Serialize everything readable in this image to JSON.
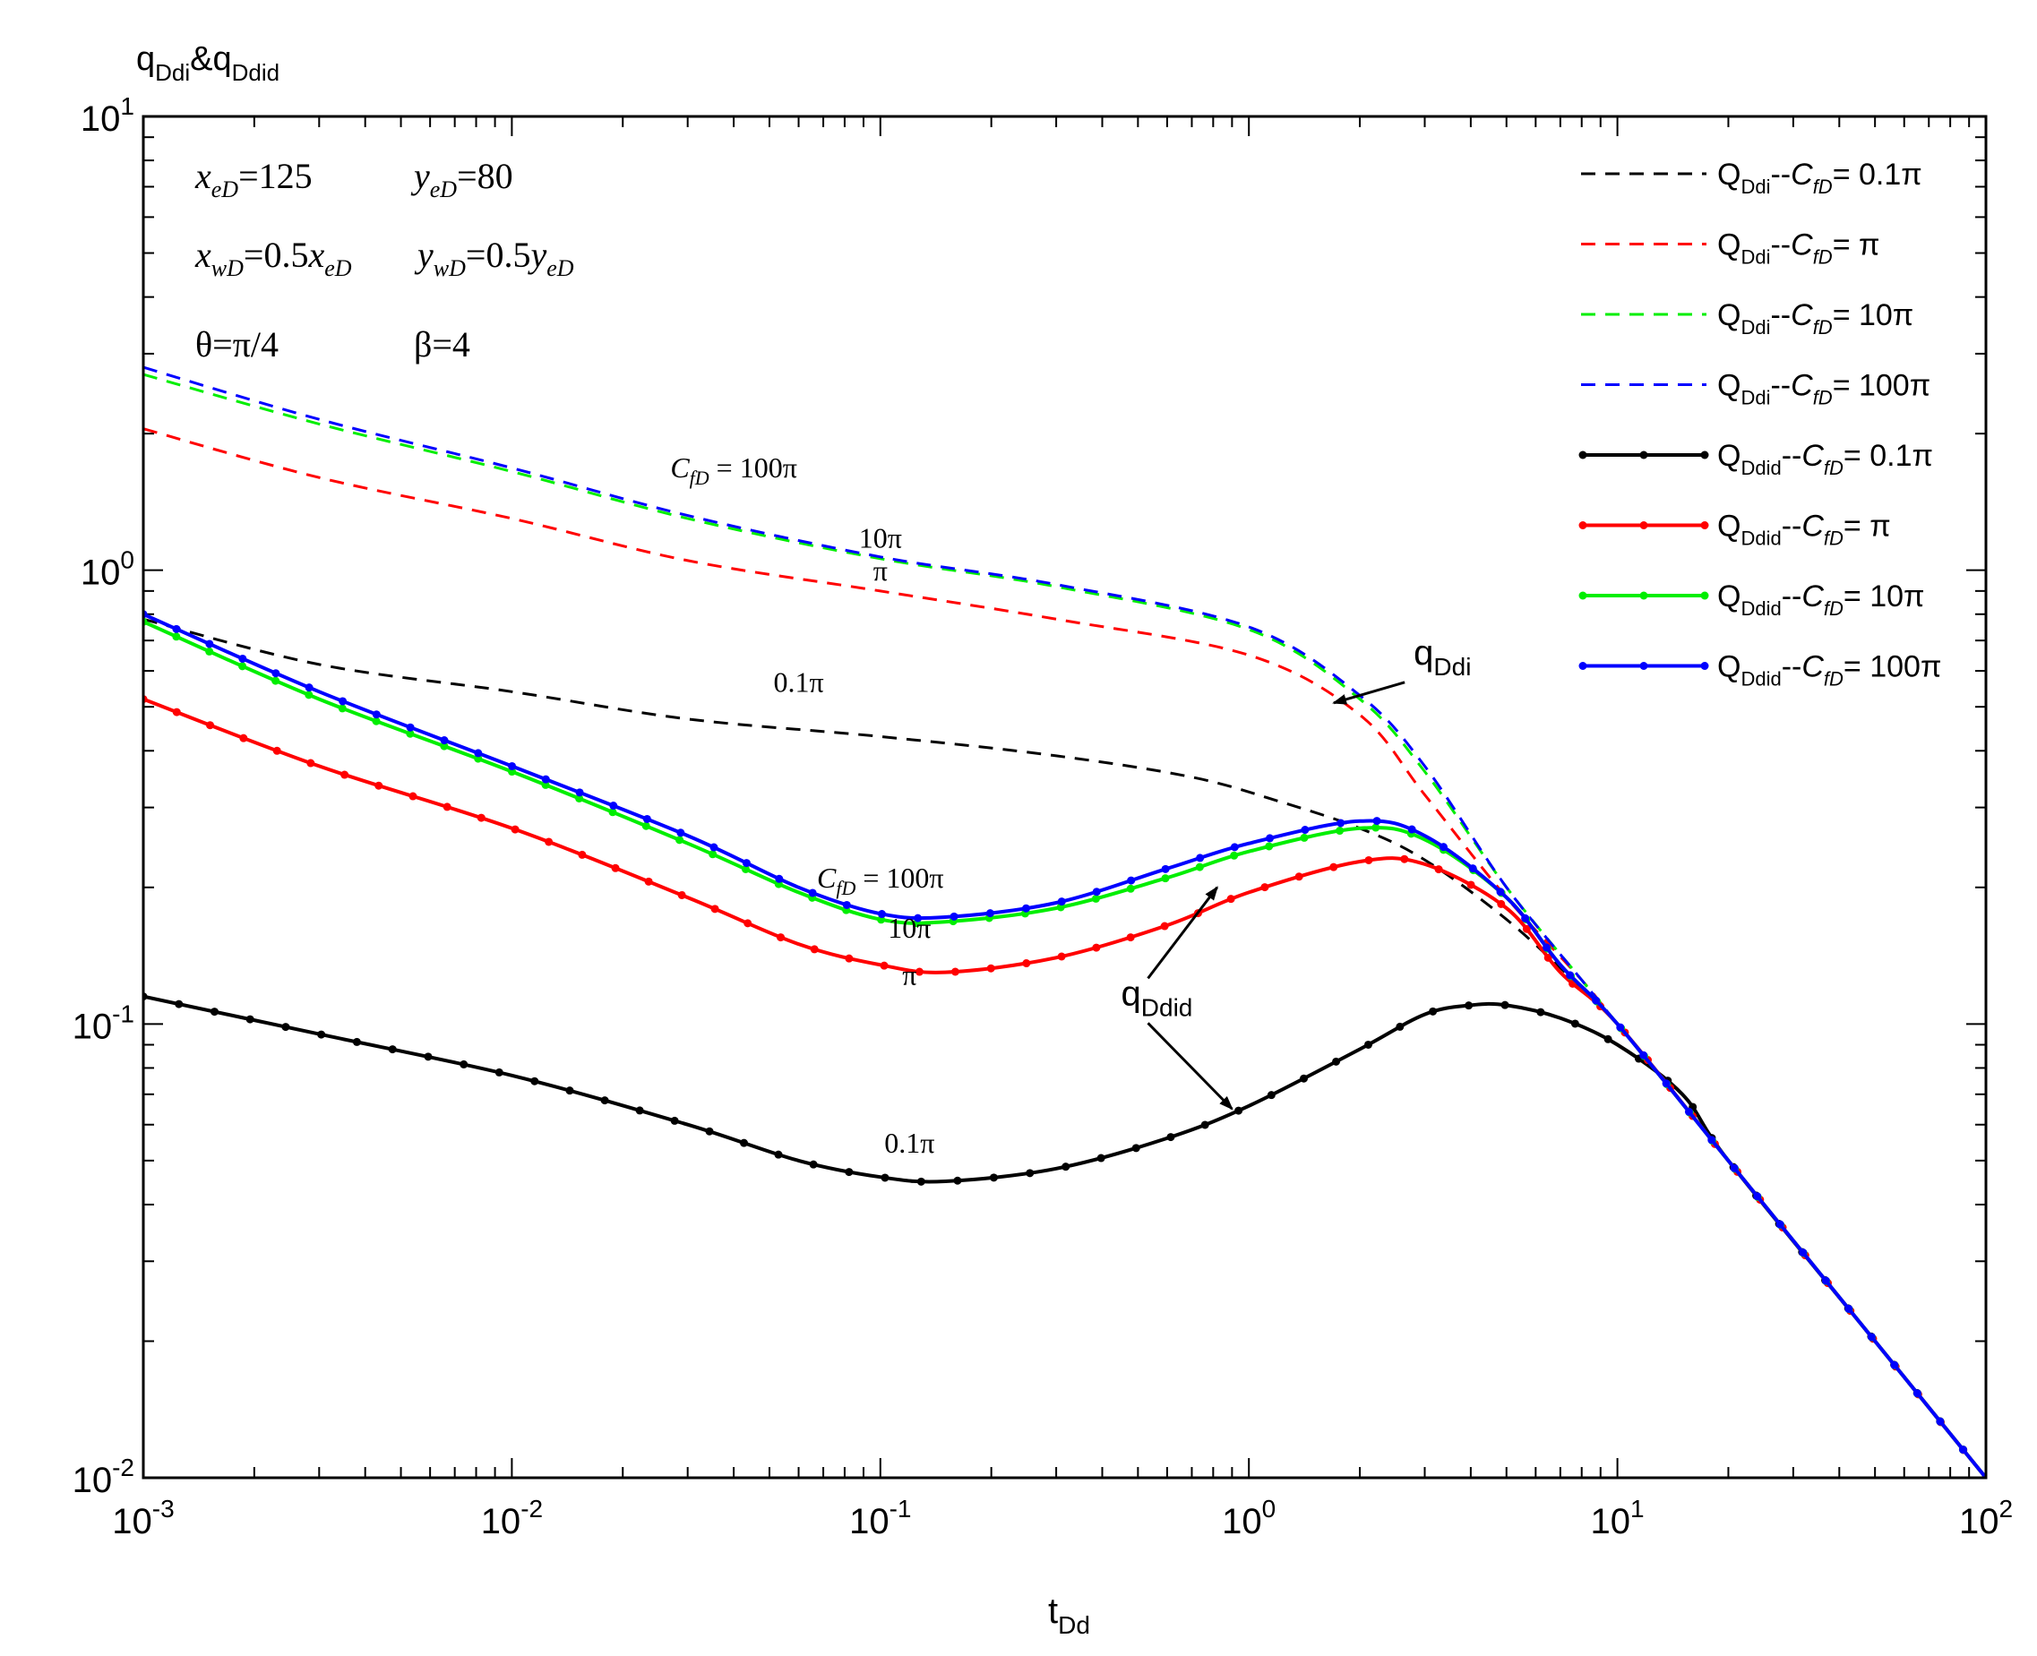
{
  "chart_data": {
    "type": "line",
    "title": "",
    "ylabel": {
      "main": "q",
      "sub1": "Ddi",
      "amp": "&",
      "main2": "q",
      "sub2": "Ddid"
    },
    "xlabel": {
      "main": "t",
      "sub": "Dd"
    },
    "xscale": "log",
    "yscale": "log",
    "xlim": [
      0.001,
      100
    ],
    "ylim": [
      0.01,
      10
    ],
    "x_ticks": [
      {
        "value": 0.001,
        "base": "10",
        "exp": "-3"
      },
      {
        "value": 0.01,
        "base": "10",
        "exp": "-2"
      },
      {
        "value": 0.1,
        "base": "10",
        "exp": "-1"
      },
      {
        "value": 1,
        "base": "10",
        "exp": "0"
      },
      {
        "value": 10,
        "base": "10",
        "exp": "1"
      },
      {
        "value": 100,
        "base": "10",
        "exp": "2"
      }
    ],
    "y_ticks": [
      {
        "value": 0.01,
        "base": "10",
        "exp": "-2"
      },
      {
        "value": 0.1,
        "base": "10",
        "exp": "-1"
      },
      {
        "value": 1,
        "base": "10",
        "exp": "0"
      },
      {
        "value": 10,
        "base": "10",
        "exp": "1"
      }
    ],
    "parameters": [
      {
        "parts": [
          [
            "x",
            "eD"
          ],
          [
            "=125",
            ""
          ]
        ]
      },
      {
        "parts": [
          [
            "y",
            "eD"
          ],
          [
            "=80",
            ""
          ]
        ]
      },
      {
        "parts": [
          [
            "x",
            "wD"
          ],
          [
            "=0.5",
            ""
          ],
          [
            "x",
            "eD"
          ]
        ]
      },
      {
        "parts": [
          [
            "y",
            "wD"
          ],
          [
            "=0.5",
            ""
          ],
          [
            "y",
            "eD"
          ]
        ]
      },
      {
        "parts": [
          [
            "θ=π/4",
            ""
          ]
        ]
      },
      {
        "parts": [
          [
            "β=4",
            ""
          ]
        ]
      }
    ],
    "legend_position": "top-right",
    "series": [
      {
        "name": "QDdi--CfD=0.1π",
        "legend": {
          "q": "Q",
          "sub": "Ddi",
          "sep": "--",
          "c": "C",
          "csub": "fD",
          "val": "= 0.1π"
        },
        "color": "#000000",
        "style": "dashed",
        "markers": false,
        "points": [
          [
            0.001,
            0.78
          ],
          [
            0.003,
            0.62
          ],
          [
            0.01,
            0.54
          ],
          [
            0.03,
            0.47
          ],
          [
            0.1,
            0.43
          ],
          [
            0.3,
            0.39
          ],
          [
            0.7,
            0.35
          ],
          [
            1.2,
            0.31
          ],
          [
            2,
            0.27
          ],
          [
            3,
            0.23
          ],
          [
            5,
            0.17
          ],
          [
            8,
            0.12
          ],
          [
            10,
            0.1
          ],
          [
            20,
            0.05
          ],
          [
            50,
            0.02
          ],
          [
            100,
            0.01
          ]
        ]
      },
      {
        "name": "QDdi--CfD=π",
        "legend": {
          "q": "Q",
          "sub": "Ddi",
          "sep": "--",
          "c": "C",
          "csub": "fD",
          "val": "= π"
        },
        "color": "#ff0000",
        "style": "dashed",
        "markers": false,
        "points": [
          [
            0.001,
            2.05
          ],
          [
            0.003,
            1.6
          ],
          [
            0.01,
            1.3
          ],
          [
            0.03,
            1.05
          ],
          [
            0.1,
            0.9
          ],
          [
            0.3,
            0.78
          ],
          [
            1,
            0.65
          ],
          [
            2,
            0.48
          ],
          [
            3,
            0.32
          ],
          [
            5,
            0.19
          ],
          [
            8,
            0.125
          ],
          [
            10,
            0.1
          ],
          [
            20,
            0.05
          ],
          [
            50,
            0.02
          ],
          [
            100,
            0.01
          ]
        ]
      },
      {
        "name": "QDdi--CfD=10π",
        "legend": {
          "q": "Q",
          "sub": "Ddi",
          "sep": "--",
          "c": "C",
          "csub": "fD",
          "val": "= 10π"
        },
        "color": "#00ee00",
        "style": "dashed",
        "markers": false,
        "points": [
          [
            0.001,
            2.7
          ],
          [
            0.003,
            2.1
          ],
          [
            0.01,
            1.65
          ],
          [
            0.03,
            1.3
          ],
          [
            0.1,
            1.06
          ],
          [
            0.3,
            0.92
          ],
          [
            1,
            0.74
          ],
          [
            2,
            0.52
          ],
          [
            3,
            0.36
          ],
          [
            5,
            0.2
          ],
          [
            8,
            0.125
          ],
          [
            10,
            0.1
          ],
          [
            20,
            0.05
          ],
          [
            50,
            0.02
          ],
          [
            100,
            0.01
          ]
        ]
      },
      {
        "name": "QDdi--CfD=100π",
        "legend": {
          "q": "Q",
          "sub": "Ddi",
          "sep": "--",
          "c": "C",
          "csub": "fD",
          "val": "= 100π"
        },
        "color": "#0000ff",
        "style": "dashed",
        "markers": false,
        "points": [
          [
            0.001,
            2.8
          ],
          [
            0.003,
            2.15
          ],
          [
            0.01,
            1.68
          ],
          [
            0.03,
            1.32
          ],
          [
            0.1,
            1.07
          ],
          [
            0.3,
            0.93
          ],
          [
            1,
            0.75
          ],
          [
            2,
            0.53
          ],
          [
            3,
            0.37
          ],
          [
            5,
            0.2
          ],
          [
            8,
            0.125
          ],
          [
            10,
            0.1
          ],
          [
            20,
            0.05
          ],
          [
            50,
            0.02
          ],
          [
            100,
            0.01
          ]
        ]
      },
      {
        "name": "QDdid--CfD=0.1π",
        "legend": {
          "q": "Q",
          "sub": "Ddid",
          "sep": "--",
          "c": "C",
          "csub": "fD",
          "val": "= 0.1π"
        },
        "color": "#000000",
        "style": "solid",
        "markers": true,
        "points": [
          [
            0.001,
            0.115
          ],
          [
            0.003,
            0.095
          ],
          [
            0.01,
            0.077
          ],
          [
            0.03,
            0.06
          ],
          [
            0.06,
            0.05
          ],
          [
            0.1,
            0.046
          ],
          [
            0.15,
            0.045
          ],
          [
            0.3,
            0.048
          ],
          [
            0.6,
            0.056
          ],
          [
            1,
            0.066
          ],
          [
            2,
            0.088
          ],
          [
            3,
            0.105
          ],
          [
            4,
            0.11
          ],
          [
            5,
            0.11
          ],
          [
            7,
            0.103
          ],
          [
            10,
            0.09
          ],
          [
            15,
            0.07
          ],
          [
            20,
            0.05
          ],
          [
            50,
            0.02
          ],
          [
            100,
            0.01
          ]
        ]
      },
      {
        "name": "QDdid--CfD=π",
        "legend": {
          "q": "Q",
          "sub": "Ddid",
          "sep": "--",
          "c": "C",
          "csub": "fD",
          "val": "= π"
        },
        "color": "#ff0000",
        "style": "solid",
        "markers": true,
        "points": [
          [
            0.001,
            0.52
          ],
          [
            0.003,
            0.37
          ],
          [
            0.01,
            0.27
          ],
          [
            0.03,
            0.19
          ],
          [
            0.06,
            0.15
          ],
          [
            0.1,
            0.135
          ],
          [
            0.15,
            0.13
          ],
          [
            0.3,
            0.14
          ],
          [
            0.6,
            0.165
          ],
          [
            1,
            0.195
          ],
          [
            2,
            0.228
          ],
          [
            3,
            0.225
          ],
          [
            5,
            0.18
          ],
          [
            7,
            0.13
          ],
          [
            10,
            0.1
          ],
          [
            20,
            0.05
          ],
          [
            50,
            0.02
          ],
          [
            100,
            0.01
          ]
        ]
      },
      {
        "name": "QDdid--CfD=10π",
        "legend": {
          "q": "Q",
          "sub": "Ddid",
          "sep": "--",
          "c": "C",
          "csub": "fD",
          "val": "= 10π"
        },
        "color": "#00ee00",
        "style": "solid",
        "markers": true,
        "points": [
          [
            0.001,
            0.77
          ],
          [
            0.003,
            0.52
          ],
          [
            0.01,
            0.36
          ],
          [
            0.03,
            0.25
          ],
          [
            0.06,
            0.195
          ],
          [
            0.1,
            0.17
          ],
          [
            0.15,
            0.168
          ],
          [
            0.3,
            0.18
          ],
          [
            0.6,
            0.21
          ],
          [
            1,
            0.24
          ],
          [
            2,
            0.27
          ],
          [
            3,
            0.255
          ],
          [
            5,
            0.19
          ],
          [
            7,
            0.135
          ],
          [
            10,
            0.1
          ],
          [
            20,
            0.05
          ],
          [
            50,
            0.02
          ],
          [
            100,
            0.01
          ]
        ]
      },
      {
        "name": "QDdid--CfD=100π",
        "legend": {
          "q": "Q",
          "sub": "Ddid",
          "sep": "--",
          "c": "C",
          "csub": "fD",
          "val": "= 100π"
        },
        "color": "#0000ff",
        "style": "solid",
        "markers": true,
        "points": [
          [
            0.001,
            0.8
          ],
          [
            0.003,
            0.54
          ],
          [
            0.01,
            0.37
          ],
          [
            0.03,
            0.26
          ],
          [
            0.06,
            0.2
          ],
          [
            0.1,
            0.175
          ],
          [
            0.15,
            0.172
          ],
          [
            0.3,
            0.185
          ],
          [
            0.6,
            0.22
          ],
          [
            1,
            0.25
          ],
          [
            2,
            0.28
          ],
          [
            3,
            0.26
          ],
          [
            5,
            0.19
          ],
          [
            7,
            0.135
          ],
          [
            10,
            0.1
          ],
          [
            20,
            0.05
          ],
          [
            50,
            0.02
          ],
          [
            100,
            0.01
          ]
        ]
      }
    ],
    "annotations": [
      {
        "name": "annotation-cfd-100pi-upper",
        "text": "= 100π",
        "prefix": "C",
        "prefix_sub": "fD",
        "x": 0.04,
        "y": 1.6
      },
      {
        "name": "annotation-10pi-upper",
        "text": "10π",
        "x": 0.1,
        "y": 1.12
      },
      {
        "name": "annotation-pi-upper",
        "text": "π",
        "x": 0.1,
        "y": 0.95
      },
      {
        "name": "annotation-0.1pi-upper",
        "text": "0.1π",
        "x": 0.06,
        "y": 0.54
      },
      {
        "name": "annotation-cfd-100pi-lower",
        "text": "= 100π",
        "prefix": "C",
        "prefix_sub": "fD",
        "x": 0.1,
        "y": 0.2
      },
      {
        "name": "annotation-10pi-lower",
        "text": "10π",
        "x": 0.12,
        "y": 0.155
      },
      {
        "name": "annotation-pi-lower",
        "text": "π",
        "x": 0.12,
        "y": 0.122
      },
      {
        "name": "annotation-0.1pi-lower",
        "text": "0.1π",
        "x": 0.12,
        "y": 0.052
      }
    ],
    "callouts": [
      {
        "name": "callout-qddi",
        "label": "q",
        "label_sub": "Ddi",
        "text_at": [
          2.8,
          0.62
        ],
        "arrow_to": [
          1.7,
          0.51
        ]
      },
      {
        "name": "callout-qddid-upper",
        "label": "q",
        "label_sub": "Ddid",
        "text_at": [
          0.45,
          0.11
        ],
        "arrow_to": [
          0.82,
          0.2
        ]
      },
      {
        "name": "callout-qddid-lower",
        "label": "",
        "label_sub": "",
        "text_at": [
          0.45,
          0.11
        ],
        "arrow_to": [
          0.9,
          0.065
        ]
      }
    ]
  }
}
